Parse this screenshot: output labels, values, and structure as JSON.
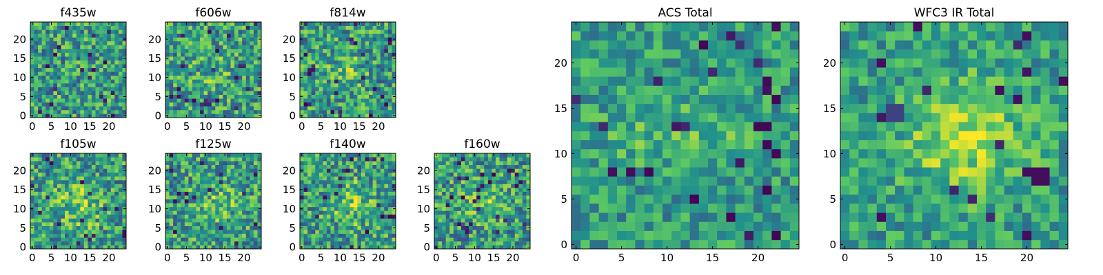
{
  "figure": {
    "colormap": "viridis",
    "colormap_stops": [
      "#440154",
      "#3b528b",
      "#21918c",
      "#5ec962",
      "#fde725"
    ]
  },
  "chart_data": [
    {
      "type": "heatmap",
      "title": "f435w",
      "grid_size": [
        25,
        25
      ],
      "xlim": [
        0,
        24
      ],
      "ylim": [
        0,
        24
      ],
      "xticks": [
        "0",
        "5",
        "10",
        "15",
        "20"
      ],
      "yticks": [
        "0",
        "5",
        "10",
        "15",
        "20"
      ],
      "structure": "noise"
    },
    {
      "type": "heatmap",
      "title": "f606w",
      "grid_size": [
        25,
        25
      ],
      "xlim": [
        0,
        24
      ],
      "ylim": [
        0,
        24
      ],
      "xticks": [
        "0",
        "5",
        "10",
        "15",
        "20"
      ],
      "yticks": [
        "0",
        "5",
        "10",
        "15",
        "20"
      ],
      "structure": "faint central source near (12, 12)"
    },
    {
      "type": "heatmap",
      "title": "f814w",
      "grid_size": [
        25,
        25
      ],
      "xlim": [
        0,
        24
      ],
      "ylim": [
        0,
        24
      ],
      "xticks": [
        "0",
        "5",
        "10",
        "15",
        "20"
      ],
      "yticks": [
        "0",
        "5",
        "10",
        "15",
        "20"
      ],
      "structure": "faint central source near (12, 12)"
    },
    {
      "type": "heatmap",
      "title": "f105w",
      "grid_size": [
        25,
        25
      ],
      "xlim": [
        0,
        24
      ],
      "ylim": [
        0,
        24
      ],
      "xticks": [
        "0",
        "5",
        "10",
        "15",
        "20"
      ],
      "yticks": [
        "0",
        "5",
        "10",
        "15",
        "20"
      ],
      "structure": "central source near (12, 11)"
    },
    {
      "type": "heatmap",
      "title": "f125w",
      "grid_size": [
        25,
        25
      ],
      "xlim": [
        0,
        24
      ],
      "ylim": [
        0,
        24
      ],
      "xticks": [
        "0",
        "5",
        "10",
        "15",
        "20"
      ],
      "yticks": [
        "0",
        "5",
        "10",
        "15",
        "20"
      ],
      "structure": "central source near (12, 11)"
    },
    {
      "type": "heatmap",
      "title": "f140w",
      "grid_size": [
        25,
        25
      ],
      "xlim": [
        0,
        24
      ],
      "ylim": [
        0,
        24
      ],
      "xticks": [
        "0",
        "5",
        "10",
        "15",
        "20"
      ],
      "yticks": [
        "0",
        "5",
        "10",
        "15",
        "20"
      ],
      "structure": "central source near (13, 12)"
    },
    {
      "type": "heatmap",
      "title": "f160w",
      "grid_size": [
        25,
        25
      ],
      "xlim": [
        0,
        24
      ],
      "ylim": [
        0,
        24
      ],
      "xticks": [
        "0",
        "5",
        "10",
        "15",
        "20"
      ],
      "yticks": [
        "0",
        "5",
        "10",
        "15",
        "20"
      ],
      "structure": "central source near (13, 12)"
    },
    {
      "type": "heatmap",
      "title": "ACS Total",
      "grid_size": [
        25,
        25
      ],
      "xlim": [
        0,
        24
      ],
      "ylim": [
        0,
        24
      ],
      "xticks": [
        "0",
        "5",
        "10",
        "15",
        "20"
      ],
      "yticks": [
        "0",
        "5",
        "10",
        "15",
        "20"
      ],
      "structure": "horizontal bright band near y=12, dark pixels near (20, 13) and (8, 8)"
    },
    {
      "type": "heatmap",
      "title": "WFC3 IR Total",
      "grid_size": [
        25,
        25
      ],
      "xlim": [
        0,
        24
      ],
      "ylim": [
        0,
        24
      ],
      "xticks": [
        "0",
        "5",
        "10",
        "15",
        "20"
      ],
      "yticks": [
        "0",
        "5",
        "10",
        "15",
        "20"
      ],
      "structure": "bright central source near (13, 12), dark pixels near (21, 7)"
    }
  ]
}
